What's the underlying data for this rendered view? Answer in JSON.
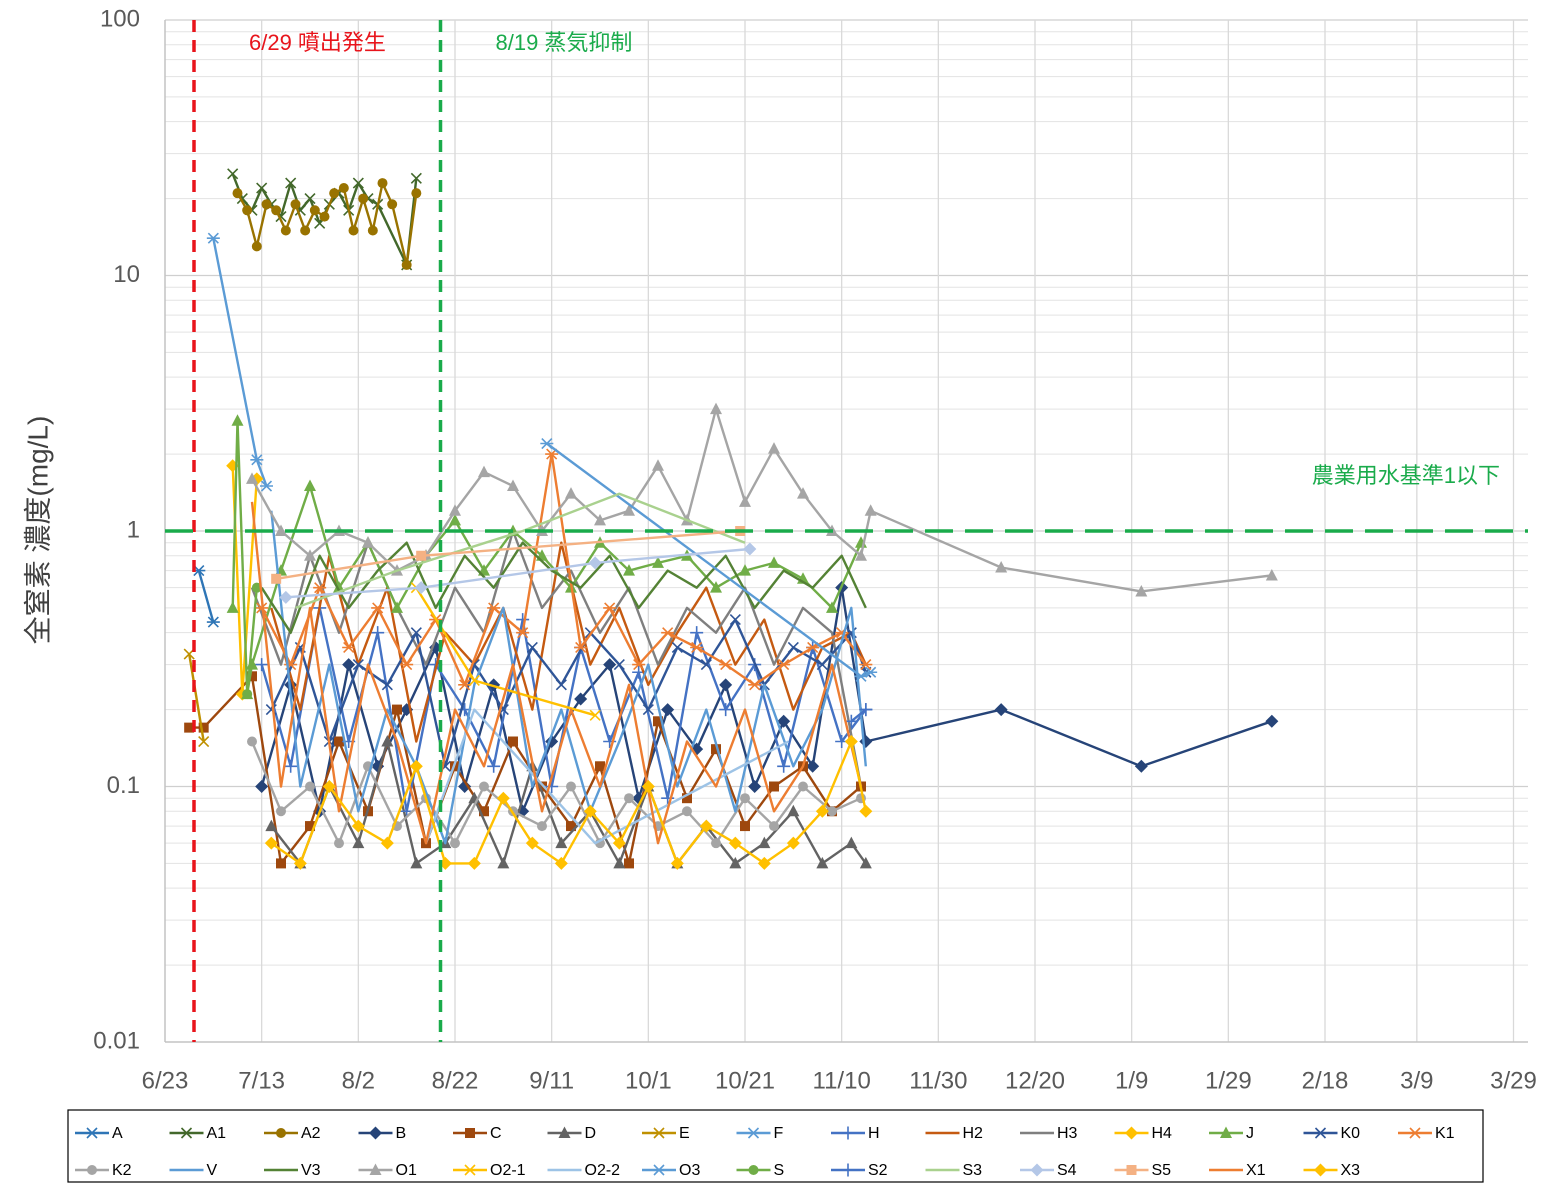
{
  "chart_data": {
    "type": "line",
    "y_label": "全窒素 濃度(mg/L)",
    "log_y": true,
    "grid": true,
    "minor_grid": true,
    "legend": "bottom",
    "xlim": [
      "6/23",
      "4/1"
    ],
    "xticks": [
      "6/23",
      "7/13",
      "8/2",
      "8/22",
      "9/11",
      "10/1",
      "10/21",
      "11/10",
      "11/30",
      "12/20",
      "1/9",
      "1/29",
      "2/18",
      "3/9",
      "3/29"
    ],
    "ylim": [
      0.01,
      100
    ],
    "yticks": [
      0.01,
      0.1,
      1,
      10,
      100
    ],
    "vlines": [
      {
        "x": "6/29",
        "color": "#e8141b",
        "label": "6/29 噴出発生"
      },
      {
        "x": "8/19",
        "color": "#1aab4b",
        "label": "8/19 蒸気抑制"
      }
    ],
    "hlines": [
      {
        "y": 1,
        "color": "#1aab4b",
        "label": "農業用水基準1以下"
      }
    ],
    "series": [
      {
        "name": "A",
        "color": "#2e75b6",
        "marker": "star",
        "x": [
          "6/30",
          "7/3"
        ],
        "values": [
          0.7,
          0.44
        ]
      },
      {
        "name": "A1",
        "color": "#43682b",
        "marker": "x",
        "x": [
          "7/7",
          "7/9",
          "7/11",
          "7/13",
          "7/15",
          "7/17",
          "7/19",
          "7/21",
          "7/23",
          "7/25",
          "7/27",
          "7/29",
          "7/31",
          "8/2",
          "8/4",
          "8/6",
          "8/12",
          "8/14"
        ],
        "values": [
          25,
          20,
          18,
          22,
          19,
          17,
          23,
          18,
          20,
          16,
          19,
          21,
          18,
          23,
          20,
          19,
          11,
          24
        ]
      },
      {
        "name": "A2",
        "color": "#997300",
        "marker": "circle",
        "x": [
          "7/8",
          "7/10",
          "7/12",
          "7/14",
          "7/16",
          "7/18",
          "7/20",
          "7/22",
          "7/24",
          "7/26",
          "7/28",
          "7/30",
          "8/1",
          "8/3",
          "8/5",
          "8/7",
          "8/9",
          "8/12",
          "8/14"
        ],
        "values": [
          21,
          18,
          13,
          19,
          18,
          15,
          19,
          15,
          18,
          17,
          21,
          22,
          15,
          20,
          15,
          23,
          19,
          11,
          21
        ]
      },
      {
        "name": "B",
        "color": "#264478",
        "marker": "diamond",
        "x": [
          "7/13",
          "7/19",
          "7/25",
          "7/31",
          "8/6",
          "8/12",
          "8/18",
          "8/24",
          "8/30",
          "9/5",
          "9/11",
          "9/17",
          "9/23",
          "9/29",
          "10/5",
          "10/11",
          "10/17",
          "10/23",
          "10/29",
          "11/4",
          "11/10",
          "11/15",
          "12/13",
          "1/11",
          "2/7"
        ],
        "values": [
          0.1,
          0.25,
          0.08,
          0.3,
          0.12,
          0.2,
          0.35,
          0.1,
          0.25,
          0.08,
          0.15,
          0.22,
          0.3,
          0.09,
          0.2,
          0.14,
          0.25,
          0.1,
          0.18,
          0.12,
          0.6,
          0.15,
          0.2,
          0.12,
          0.18
        ]
      },
      {
        "name": "C",
        "color": "#9e480e",
        "marker": "square",
        "x": [
          "6/28",
          "7/1",
          "7/11",
          "7/17",
          "7/23",
          "7/29",
          "8/4",
          "8/10",
          "8/16",
          "8/22",
          "8/28",
          "9/3",
          "9/9",
          "9/15",
          "9/21",
          "9/27",
          "10/3",
          "10/9",
          "10/15",
          "10/21",
          "10/27",
          "11/2",
          "11/8",
          "11/14"
        ],
        "values": [
          0.17,
          0.17,
          0.27,
          0.05,
          0.07,
          0.15,
          0.08,
          0.2,
          0.06,
          0.12,
          0.08,
          0.15,
          0.1,
          0.07,
          0.12,
          0.05,
          0.18,
          0.09,
          0.14,
          0.07,
          0.1,
          0.12,
          0.08,
          0.1
        ]
      },
      {
        "name": "D",
        "color": "#636363",
        "marker": "triangle",
        "x": [
          "7/15",
          "7/21",
          "7/27",
          "8/2",
          "8/8",
          "8/14",
          "8/20",
          "8/26",
          "9/1",
          "9/7",
          "9/13",
          "9/19",
          "9/25",
          "10/1",
          "10/7",
          "10/13",
          "10/19",
          "10/25",
          "10/31",
          "11/6",
          "11/12",
          "11/15"
        ],
        "values": [
          0.07,
          0.05,
          0.1,
          0.06,
          0.15,
          0.05,
          0.06,
          0.09,
          0.05,
          0.12,
          0.06,
          0.08,
          0.05,
          0.1,
          0.05,
          0.07,
          0.05,
          0.06,
          0.08,
          0.05,
          0.06,
          0.05
        ]
      },
      {
        "name": "E",
        "color": "#bf9000",
        "marker": "x",
        "x": [
          "6/28",
          "7/1"
        ],
        "values": [
          0.33,
          0.15
        ]
      },
      {
        "name": "F",
        "color": "#5b9bd5",
        "marker": "star",
        "x": [
          "7/3",
          "7/12",
          "7/14"
        ],
        "values": [
          14,
          1.9,
          1.5
        ]
      },
      {
        "name": "H",
        "color": "#4472c4",
        "marker": "plus",
        "x": [
          "7/13",
          "7/19",
          "7/25",
          "7/31",
          "8/6",
          "8/12",
          "8/18",
          "8/24",
          "8/30",
          "9/5",
          "9/11",
          "9/17",
          "9/23",
          "9/29",
          "10/5",
          "10/11",
          "10/17",
          "10/23",
          "10/29",
          "11/4",
          "11/10",
          "11/15"
        ],
        "values": [
          0.3,
          0.12,
          0.5,
          0.15,
          0.4,
          0.08,
          0.3,
          0.2,
          0.12,
          0.45,
          0.1,
          0.35,
          0.15,
          0.28,
          0.09,
          0.4,
          0.2,
          0.3,
          0.12,
          0.35,
          0.15,
          0.2
        ]
      },
      {
        "name": "H2",
        "color": "#c55a11",
        "x": [
          "7/15",
          "7/21",
          "7/27",
          "8/2",
          "8/8",
          "8/14",
          "8/20",
          "8/26",
          "9/1",
          "9/7",
          "9/13",
          "9/19",
          "9/25",
          "10/1",
          "10/7",
          "10/13",
          "10/19",
          "10/25",
          "10/31",
          "11/6",
          "11/12",
          "11/15"
        ],
        "values": [
          0.5,
          0.2,
          0.8,
          0.3,
          0.6,
          0.15,
          0.4,
          0.3,
          0.5,
          0.2,
          0.9,
          0.3,
          0.5,
          0.25,
          0.4,
          0.6,
          0.3,
          0.45,
          0.2,
          0.35,
          0.4,
          0.3
        ]
      },
      {
        "name": "H3",
        "color": "#7f7f7f",
        "x": [
          "7/11",
          "7/17",
          "7/23",
          "7/29",
          "8/4",
          "8/10",
          "8/16",
          "8/22",
          "8/28",
          "9/3",
          "9/9",
          "9/15",
          "9/21",
          "9/27",
          "10/3",
          "10/9",
          "10/15",
          "10/21",
          "10/27",
          "11/2",
          "11/8",
          "11/14"
        ],
        "values": [
          0.6,
          0.3,
          0.8,
          0.4,
          0.9,
          0.5,
          0.3,
          0.6,
          0.4,
          1.0,
          0.5,
          0.7,
          0.4,
          0.6,
          0.3,
          0.5,
          0.4,
          0.6,
          0.3,
          0.5,
          0.4,
          0.1
        ]
      },
      {
        "name": "H4",
        "color": "#ffc000",
        "marker": "diamond",
        "x": [
          "7/7",
          "7/9",
          "7/12"
        ],
        "values": [
          1.8,
          0.23,
          1.6
        ]
      },
      {
        "name": "J",
        "color": "#70ad47",
        "marker": "triangle",
        "x": [
          "7/7",
          "7/8",
          "7/10",
          "7/11",
          "7/17",
          "7/23",
          "7/29",
          "8/4",
          "8/10",
          "8/16",
          "8/22",
          "8/28",
          "9/3",
          "9/9",
          "9/15",
          "9/21",
          "9/27",
          "10/3",
          "10/9",
          "10/15",
          "10/21",
          "10/27",
          "11/2",
          "11/8",
          "11/14"
        ],
        "values": [
          0.5,
          2.7,
          0.23,
          0.3,
          0.7,
          1.5,
          0.6,
          0.9,
          0.5,
          0.8,
          1.1,
          0.7,
          1.0,
          0.8,
          0.6,
          0.9,
          0.7,
          0.75,
          0.8,
          0.6,
          0.7,
          0.75,
          0.65,
          0.5,
          0.9
        ]
      },
      {
        "name": "K0",
        "color": "#2f5597",
        "marker": "x",
        "x": [
          "7/15",
          "7/21",
          "7/27",
          "8/2",
          "8/8",
          "8/14",
          "8/20",
          "8/26",
          "9/1",
          "9/7",
          "9/13",
          "9/19",
          "9/25",
          "10/1",
          "10/7",
          "10/13",
          "10/19",
          "10/25",
          "10/31",
          "11/6",
          "11/12",
          "11/15"
        ],
        "values": [
          0.2,
          0.35,
          0.15,
          0.3,
          0.25,
          0.4,
          0.12,
          0.3,
          0.2,
          0.35,
          0.25,
          0.4,
          0.3,
          0.2,
          0.35,
          0.3,
          0.45,
          0.25,
          0.35,
          0.3,
          0.4,
          0.28
        ]
      },
      {
        "name": "K1",
        "color": "#ed7d31",
        "marker": "star",
        "x": [
          "7/13",
          "7/19",
          "7/25",
          "7/31",
          "8/6",
          "8/12",
          "8/18",
          "8/24",
          "8/30",
          "9/5",
          "9/11",
          "9/17",
          "9/23",
          "9/29",
          "10/5",
          "10/11",
          "10/17",
          "10/23",
          "10/29",
          "11/4",
          "11/10",
          "11/15"
        ],
        "values": [
          0.5,
          0.3,
          0.6,
          0.35,
          0.5,
          0.3,
          0.45,
          0.25,
          0.5,
          0.4,
          2.0,
          0.35,
          0.5,
          0.3,
          0.4,
          0.35,
          0.3,
          0.25,
          0.3,
          0.35,
          0.4,
          0.3
        ]
      },
      {
        "name": "K2",
        "color": "#a5a5a5",
        "marker": "circle",
        "x": [
          "7/11",
          "7/17",
          "7/23",
          "7/29",
          "8/4",
          "8/10",
          "8/16",
          "8/22",
          "8/28",
          "9/3",
          "9/9",
          "9/15",
          "9/21",
          "9/27",
          "10/3",
          "10/9",
          "10/15",
          "10/21",
          "10/27",
          "11/2",
          "11/8",
          "11/14"
        ],
        "values": [
          0.15,
          0.08,
          0.1,
          0.06,
          0.12,
          0.07,
          0.09,
          0.06,
          0.1,
          0.08,
          0.07,
          0.1,
          0.06,
          0.09,
          0.07,
          0.08,
          0.06,
          0.09,
          0.07,
          0.1,
          0.08,
          0.09
        ]
      },
      {
        "name": "V",
        "color": "#5b9bd5",
        "x": [
          "7/15",
          "7/21",
          "7/27",
          "8/2",
          "8/8",
          "8/14",
          "8/20",
          "8/26",
          "9/1",
          "9/7",
          "9/13",
          "9/19",
          "9/25",
          "10/1",
          "10/7",
          "10/13",
          "10/19",
          "10/25",
          "10/31",
          "11/6",
          "11/12",
          "11/15"
        ],
        "values": [
          1.2,
          0.1,
          0.3,
          0.08,
          0.2,
          0.12,
          0.06,
          0.25,
          0.5,
          0.1,
          0.2,
          0.08,
          0.15,
          0.3,
          0.1,
          0.2,
          0.08,
          0.25,
          0.12,
          0.2,
          0.5,
          0.12
        ]
      },
      {
        "name": "V3",
        "color": "#548235",
        "x": [
          "7/13",
          "7/19",
          "7/25",
          "7/31",
          "8/6",
          "8/12",
          "8/18",
          "8/24",
          "8/30",
          "9/5",
          "9/11",
          "9/17",
          "9/23",
          "9/29",
          "10/5",
          "10/11",
          "10/17",
          "10/23",
          "10/29",
          "11/4",
          "11/10",
          "11/15"
        ],
        "values": [
          0.6,
          0.4,
          0.8,
          0.5,
          0.7,
          0.9,
          0.5,
          0.8,
          0.6,
          0.9,
          0.7,
          0.6,
          0.8,
          0.5,
          0.7,
          0.6,
          0.8,
          0.5,
          0.7,
          0.6,
          0.8,
          0.5
        ]
      },
      {
        "name": "O1",
        "color": "#a5a5a5",
        "marker": "triangle",
        "x": [
          "7/11",
          "7/17",
          "7/23",
          "7/29",
          "8/4",
          "8/10",
          "8/16",
          "8/22",
          "8/28",
          "9/3",
          "9/9",
          "9/15",
          "9/21",
          "9/27",
          "10/3",
          "10/9",
          "10/15",
          "10/21",
          "10/27",
          "11/2",
          "11/8",
          "11/14",
          "11/16",
          "12/13",
          "1/11",
          "2/7"
        ],
        "values": [
          1.6,
          1.0,
          0.8,
          1.0,
          0.9,
          0.7,
          0.8,
          1.2,
          1.7,
          1.5,
          1.0,
          1.4,
          1.1,
          1.2,
          1.8,
          1.1,
          3.0,
          1.3,
          2.1,
          1.4,
          1.0,
          0.8,
          1.2,
          0.72,
          0.58,
          0.67
        ]
      },
      {
        "name": "O2-1",
        "color": "#ffc000",
        "marker": "x",
        "x": [
          "8/14",
          "8/26",
          "9/20"
        ],
        "values": [
          0.6,
          0.26,
          0.19
        ]
      },
      {
        "name": "O2-2",
        "color": "#9dc3e6",
        "x": [
          "8/16",
          "8/26",
          "9/20",
          "10/30"
        ],
        "values": [
          0.06,
          0.2,
          0.06,
          0.15
        ]
      },
      {
        "name": "O3",
        "color": "#5b9bd5",
        "marker": "star",
        "x": [
          "9/10",
          "11/14",
          "11/16"
        ],
        "values": [
          2.2,
          0.27,
          0.28
        ]
      },
      {
        "name": "S",
        "color": "#70ad47",
        "marker": "circle",
        "x": [
          "7/10",
          "7/12"
        ],
        "values": [
          0.23,
          0.6
        ]
      },
      {
        "name": "S2",
        "color": "#4472c4",
        "marker": "plus",
        "x": [
          "11/12",
          "11/15"
        ],
        "values": [
          0.18,
          0.2
        ]
      },
      {
        "name": "S3",
        "color": "#a9d18e",
        "x": [
          "7/20",
          "8/10",
          "9/5",
          "9/25",
          "10/21"
        ],
        "values": [
          0.5,
          0.7,
          1.0,
          1.4,
          0.9
        ]
      },
      {
        "name": "S4",
        "color": "#b4c7e7",
        "marker": "diamond",
        "x": [
          "7/18",
          "8/15",
          "9/20",
          "10/22"
        ],
        "values": [
          0.55,
          0.6,
          0.75,
          0.85
        ]
      },
      {
        "name": "S5",
        "color": "#f4b183",
        "marker": "square",
        "x": [
          "7/16",
          "8/15",
          "10/20"
        ],
        "values": [
          0.65,
          0.8,
          1.0
        ]
      },
      {
        "name": "X1",
        "color": "#ed7d31",
        "x": [
          "7/11",
          "7/17",
          "7/23",
          "7/29",
          "8/4",
          "8/10",
          "8/16",
          "8/22",
          "8/28",
          "9/3",
          "9/9",
          "9/15",
          "9/21",
          "9/27",
          "10/3",
          "10/9",
          "10/15",
          "10/21",
          "10/27",
          "11/2",
          "11/8",
          "11/14"
        ],
        "values": [
          1.3,
          0.1,
          0.5,
          0.08,
          0.3,
          0.15,
          0.06,
          0.2,
          0.12,
          0.3,
          0.08,
          0.2,
          0.1,
          0.25,
          0.06,
          0.15,
          0.1,
          0.2,
          0.08,
          0.12,
          0.3,
          0.1
        ]
      },
      {
        "name": "X3",
        "color": "#ffc000",
        "marker": "diamond",
        "x": [
          "7/15",
          "7/21",
          "7/27",
          "8/2",
          "8/8",
          "8/14",
          "8/20",
          "8/26",
          "9/1",
          "9/7",
          "9/13",
          "9/19",
          "9/25",
          "10/1",
          "10/7",
          "10/13",
          "10/19",
          "10/25",
          "10/31",
          "11/6",
          "11/12",
          "11/15"
        ],
        "values": [
          0.06,
          0.05,
          0.1,
          0.07,
          0.06,
          0.12,
          0.05,
          0.05,
          0.09,
          0.06,
          0.05,
          0.08,
          0.06,
          0.1,
          0.05,
          0.07,
          0.06,
          0.05,
          0.06,
          0.08,
          0.15,
          0.08
        ]
      }
    ]
  }
}
